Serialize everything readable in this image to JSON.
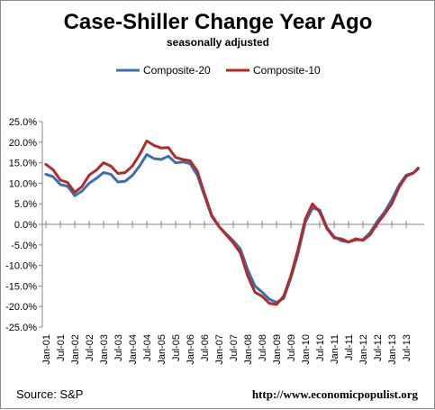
{
  "chart_data": {
    "type": "line",
    "title": "Case-Shiller Change Year Ago",
    "subtitle": "seasonally adjusted",
    "xlabel": "",
    "ylabel": "",
    "ylim": [
      -25,
      25
    ],
    "y_ticks": [
      "25.0%",
      "20.0%",
      "15.0%",
      "10.0%",
      "5.0%",
      "0.0%",
      "-5.0%",
      "-10.0%",
      "-15.0%",
      "-20.0%",
      "-25.0%"
    ],
    "x_tick_labels": [
      "Jan-01",
      "Jul-01",
      "Jan-02",
      "Jul-02",
      "Jan-03",
      "Jul-03",
      "Jan-04",
      "Jul-04",
      "Jan-05",
      "Jul-05",
      "Jan-06",
      "Jul-06",
      "Jan-07",
      "Jul-07",
      "Jan-08",
      "Jul-08",
      "Jan-09",
      "Jul-09",
      "Jan-10",
      "Jul-10",
      "Jan-11",
      "Jul-11",
      "Jan-12",
      "Jul-12",
      "Jan-13",
      "Jul-13"
    ],
    "legend_position": "top-center",
    "grid": false,
    "series": [
      {
        "name": "Composite-20",
        "color": "#3a6fb0",
        "points": [
          [
            "2001-01",
            12.2
          ],
          [
            "2001-04",
            11.6
          ],
          [
            "2001-07",
            9.7
          ],
          [
            "2001-10",
            9.3
          ],
          [
            "2002-01",
            7.0
          ],
          [
            "2002-04",
            8.1
          ],
          [
            "2002-07",
            10.0
          ],
          [
            "2002-10",
            11.2
          ],
          [
            "2003-01",
            12.6
          ],
          [
            "2003-04",
            12.2
          ],
          [
            "2003-07",
            10.3
          ],
          [
            "2003-10",
            10.5
          ],
          [
            "2004-01",
            11.9
          ],
          [
            "2004-04",
            14.2
          ],
          [
            "2004-07",
            17.0
          ],
          [
            "2004-10",
            16.0
          ],
          [
            "2005-01",
            15.8
          ],
          [
            "2005-04",
            16.6
          ],
          [
            "2005-07",
            15.0
          ],
          [
            "2005-10",
            15.2
          ],
          [
            "2006-01",
            14.8
          ],
          [
            "2006-04",
            12.0
          ],
          [
            "2006-07",
            7.0
          ],
          [
            "2006-10",
            2.0
          ],
          [
            "2007-01",
            -0.5
          ],
          [
            "2007-04",
            -2.3
          ],
          [
            "2007-07",
            -4.0
          ],
          [
            "2007-10",
            -6.0
          ],
          [
            "2008-01",
            -11.0
          ],
          [
            "2008-04",
            -15.0
          ],
          [
            "2008-07",
            -16.5
          ],
          [
            "2008-10",
            -18.2
          ],
          [
            "2009-01",
            -19.0
          ],
          [
            "2009-04",
            -18.0
          ],
          [
            "2009-07",
            -13.0
          ],
          [
            "2009-10",
            -7.0
          ],
          [
            "2010-01",
            0.5
          ],
          [
            "2010-04",
            4.0
          ],
          [
            "2010-07",
            3.5
          ],
          [
            "2010-10",
            -0.8
          ],
          [
            "2011-01",
            -3.0
          ],
          [
            "2011-04",
            -4.0
          ],
          [
            "2011-07",
            -4.3
          ],
          [
            "2011-10",
            -3.8
          ],
          [
            "2012-01",
            -3.7
          ],
          [
            "2012-04",
            -2.0
          ],
          [
            "2012-07",
            0.8
          ],
          [
            "2012-10",
            3.0
          ],
          [
            "2013-01",
            6.0
          ],
          [
            "2013-04",
            9.5
          ],
          [
            "2013-07",
            12.0
          ],
          [
            "2013-10",
            12.5
          ],
          [
            "2013-12",
            13.5
          ]
        ]
      },
      {
        "name": "Composite-10",
        "color": "#b22a2a",
        "points": [
          [
            "2001-01",
            14.6
          ],
          [
            "2001-04",
            13.3
          ],
          [
            "2001-07",
            10.8
          ],
          [
            "2001-10",
            10.2
          ],
          [
            "2002-01",
            7.8
          ],
          [
            "2002-04",
            9.2
          ],
          [
            "2002-07",
            12.0
          ],
          [
            "2002-10",
            13.2
          ],
          [
            "2003-01",
            15.0
          ],
          [
            "2003-04",
            14.2
          ],
          [
            "2003-07",
            12.4
          ],
          [
            "2003-10",
            12.6
          ],
          [
            "2004-01",
            14.2
          ],
          [
            "2004-04",
            17.0
          ],
          [
            "2004-07",
            20.3
          ],
          [
            "2004-10",
            19.2
          ],
          [
            "2005-01",
            18.6
          ],
          [
            "2005-04",
            18.7
          ],
          [
            "2005-07",
            16.3
          ],
          [
            "2005-10",
            15.8
          ],
          [
            "2006-01",
            15.5
          ],
          [
            "2006-04",
            13.0
          ],
          [
            "2006-07",
            7.5
          ],
          [
            "2006-10",
            2.3
          ],
          [
            "2007-01",
            -0.5
          ],
          [
            "2007-04",
            -2.5
          ],
          [
            "2007-07",
            -4.5
          ],
          [
            "2007-10",
            -7.0
          ],
          [
            "2008-01",
            -12.5
          ],
          [
            "2008-04",
            -16.5
          ],
          [
            "2008-07",
            -17.5
          ],
          [
            "2008-10",
            -19.2
          ],
          [
            "2009-01",
            -19.5
          ],
          [
            "2009-04",
            -17.5
          ],
          [
            "2009-07",
            -12.5
          ],
          [
            "2009-10",
            -6.0
          ],
          [
            "2010-01",
            1.3
          ],
          [
            "2010-04",
            5.0
          ],
          [
            "2010-07",
            3.0
          ],
          [
            "2010-10",
            -1.0
          ],
          [
            "2011-01",
            -3.3
          ],
          [
            "2011-04",
            -3.5
          ],
          [
            "2011-07",
            -4.3
          ],
          [
            "2011-10",
            -3.5
          ],
          [
            "2012-01",
            -3.9
          ],
          [
            "2012-04",
            -2.5
          ],
          [
            "2012-07",
            0.2
          ],
          [
            "2012-10",
            2.5
          ],
          [
            "2013-01",
            5.0
          ],
          [
            "2013-04",
            9.0
          ],
          [
            "2013-07",
            11.7
          ],
          [
            "2013-10",
            12.5
          ],
          [
            "2013-12",
            13.7
          ]
        ]
      }
    ]
  },
  "footer": {
    "source": "Source: S&P",
    "url": "http://www.economicpopulist.org"
  }
}
